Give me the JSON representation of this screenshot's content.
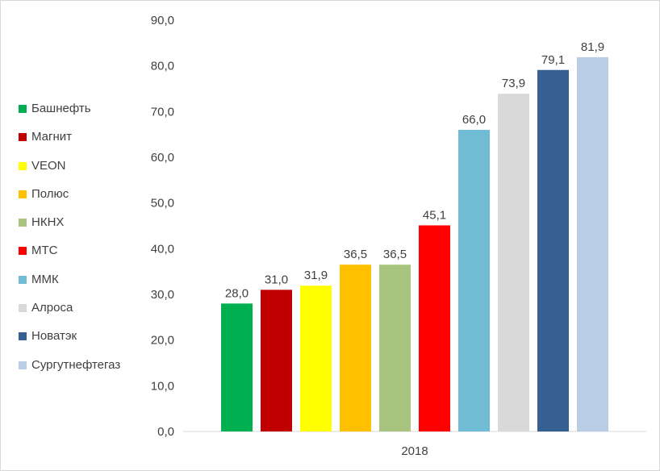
{
  "chart_data": {
    "type": "bar",
    "title": "",
    "xlabel": "",
    "ylabel": "",
    "categories": [
      "2018"
    ],
    "ylim": [
      0,
      90
    ],
    "yticks": [
      "0,0",
      "10,0",
      "20,0",
      "30,0",
      "40,0",
      "50,0",
      "60,0",
      "70,0",
      "80,0",
      "90,0"
    ],
    "grid": false,
    "legend_position": "left",
    "series": [
      {
        "name": "Башнефть",
        "value": 28.0,
        "label": "28,0",
        "color": "#00b050"
      },
      {
        "name": "Магнит",
        "value": 31.0,
        "label": "31,0",
        "color": "#c00000"
      },
      {
        "name": "VEON",
        "value": 31.9,
        "label": "31,9",
        "color": "#ffff00"
      },
      {
        "name": "Полюс",
        "value": 36.5,
        "label": "36,5",
        "color": "#ffc000"
      },
      {
        "name": "НКНХ",
        "value": 36.5,
        "label": "36,5",
        "color": "#a9c47f"
      },
      {
        "name": "МТС",
        "value": 45.1,
        "label": "45,1",
        "color": "#ff0000"
      },
      {
        "name": "ММК",
        "value": 66.0,
        "label": "66,0",
        "color": "#70bcd4"
      },
      {
        "name": "Алроса",
        "value": 73.9,
        "label": "73,9",
        "color": "#d9d9d9"
      },
      {
        "name": "Новатэк",
        "value": 79.1,
        "label": "79,1",
        "color": "#376092"
      },
      {
        "name": "Сургутнефтегаз",
        "value": 81.9,
        "label": "81,9",
        "color": "#b9cde5"
      }
    ]
  }
}
